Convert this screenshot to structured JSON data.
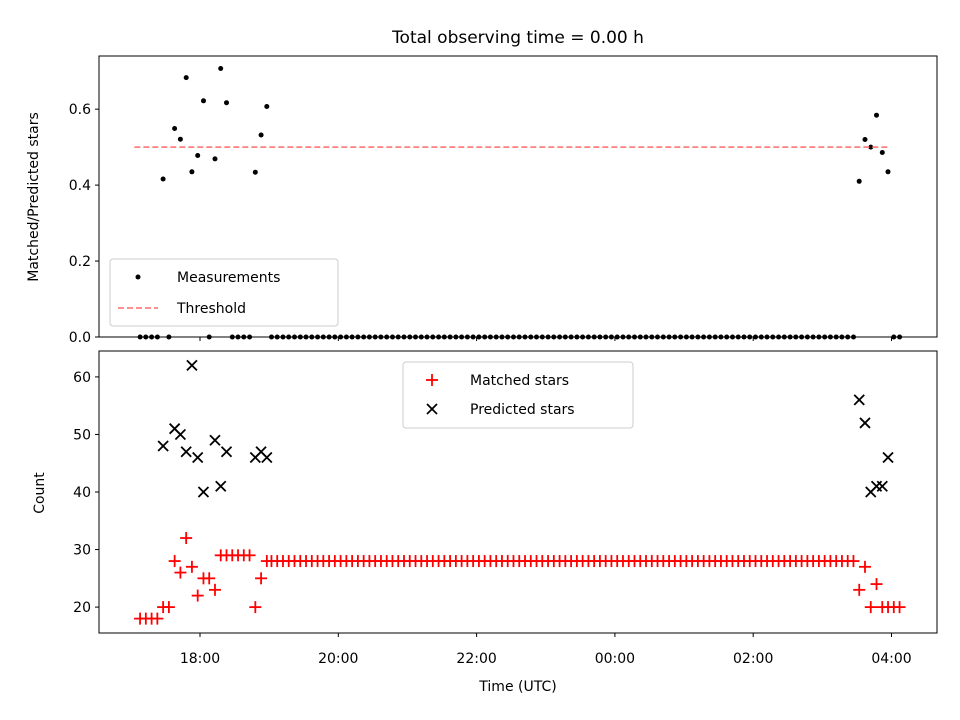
{
  "figure": {
    "title": "Total observing time = 0.00 h"
  },
  "chart_data": [
    {
      "type": "scatter",
      "ylabel": "Matched/Predicted stars",
      "xlabel": "",
      "ylim": [
        0,
        0.74
      ],
      "yticks": [
        0.0,
        0.2,
        0.4,
        0.6
      ],
      "ytick_labels": [
        "0.0",
        "0.2",
        "0.4",
        "0.6"
      ],
      "grid": false,
      "legend_position": "lower-left",
      "series": [
        {
          "name": "Measurements",
          "kind": "points",
          "color": "#000000",
          "x": [
            "17:08",
            "17:13",
            "17:18",
            "17:23",
            "17:28",
            "17:33",
            "17:38",
            "17:43",
            "17:48",
            "17:53",
            "17:58",
            "18:03",
            "18:08",
            "18:13",
            "18:18",
            "18:23",
            "18:28",
            "18:33",
            "18:38",
            "18:43",
            "18:48",
            "18:53",
            "18:58"
          ],
          "y": [
            0,
            0,
            0,
            0,
            0.416,
            0,
            0.549,
            0.521,
            0.683,
            0.435,
            0.478,
            0.622,
            0,
            0.469,
            0.707,
            0.617,
            0,
            0,
            0,
            0,
            0.434,
            0.532,
            0.607
          ]
        },
        {
          "name": "",
          "kind": "points",
          "color": "#000000",
          "note_hidden": false,
          "x_range_regular": {
            "start": "19:02",
            "end": "03:27",
            "step_minutes": 5
          },
          "y_constant": 0
        },
        {
          "name": "",
          "kind": "points",
          "color": "#000000",
          "x": [
            "03:32",
            "03:37",
            "03:42",
            "03:47",
            "03:52",
            "03:57",
            "04:02",
            "04:07"
          ],
          "y": [
            0.41,
            0.52,
            0.5,
            0.584,
            0.486,
            0.435,
            0,
            0
          ]
        },
        {
          "name": "Threshold",
          "kind": "dashed-line",
          "color": "#ff8080",
          "x": [
            "17:03",
            "03:57"
          ],
          "y": [
            0.5,
            0.5
          ]
        }
      ]
    },
    {
      "type": "scatter",
      "ylabel": "Count",
      "xlabel": "Time (UTC)",
      "ylim": [
        15.5,
        64.5
      ],
      "yticks": [
        20,
        30,
        40,
        50,
        60
      ],
      "ytick_labels": [
        "20",
        "30",
        "40",
        "50",
        "60"
      ],
      "xticks": [
        "18:00",
        "20:00",
        "22:00",
        "00:00",
        "02:00",
        "04:00"
      ],
      "grid": false,
      "legend_position": "top-center",
      "series": [
        {
          "name": "Matched stars",
          "marker": "plus",
          "color": "#ff0000",
          "x": [
            "17:08",
            "17:13",
            "17:18",
            "17:23",
            "17:28",
            "17:33",
            "17:38",
            "17:43",
            "17:48",
            "17:53",
            "17:58",
            "18:03",
            "18:08",
            "18:13",
            "18:18",
            "18:23",
            "18:28",
            "18:33",
            "18:38",
            "18:43",
            "18:48",
            "18:53",
            "18:58"
          ],
          "y": [
            18,
            18,
            18,
            18,
            20,
            20,
            28,
            26,
            32,
            27,
            22,
            25,
            25,
            23,
            29,
            29,
            29,
            29,
            29,
            29,
            20,
            25,
            28
          ]
        },
        {
          "name": "",
          "marker": "plus",
          "color": "#ff0000",
          "x_range_regular": {
            "start": "19:02",
            "end": "03:27",
            "step_minutes": 5
          },
          "y_constant": 28
        },
        {
          "name": "",
          "marker": "plus",
          "color": "#ff0000",
          "x": [
            "03:32",
            "03:37",
            "03:42",
            "03:47",
            "03:52",
            "03:57",
            "04:02",
            "04:07"
          ],
          "y": [
            23,
            27,
            20,
            24,
            20,
            20,
            20,
            20
          ]
        },
        {
          "name": "Predicted stars",
          "marker": "x",
          "color": "#000000",
          "x": [
            "17:28",
            "17:38",
            "17:43",
            "17:48",
            "17:53",
            "17:58",
            "18:03",
            "18:13",
            "18:18",
            "18:23",
            "18:48",
            "18:53",
            "18:58",
            "03:32",
            "03:37",
            "03:42",
            "03:47",
            "03:52",
            "03:57"
          ],
          "y": [
            48,
            51,
            50,
            47,
            62,
            46,
            40,
            49,
            41,
            47,
            46,
            47,
            46,
            56,
            52,
            40,
            41,
            41,
            46
          ]
        }
      ]
    }
  ]
}
